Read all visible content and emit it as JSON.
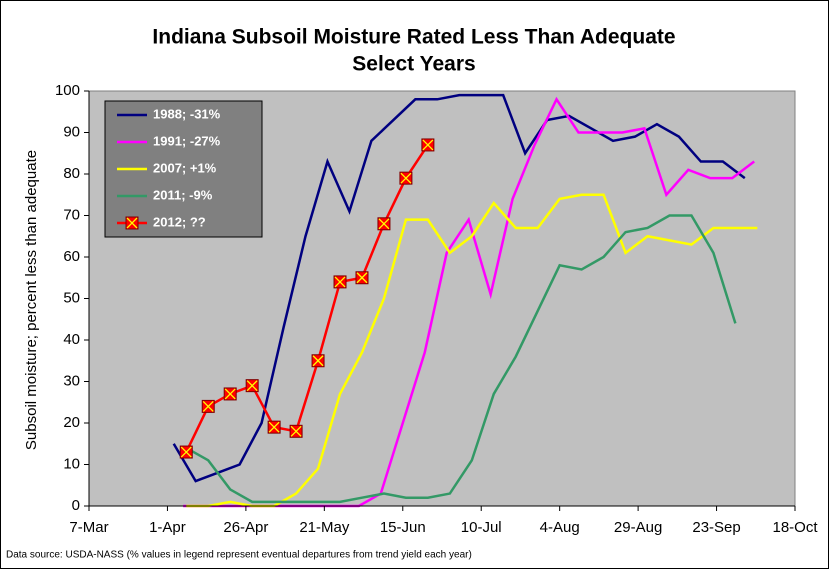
{
  "chart_data": {
    "type": "line",
    "title": "Indiana Subsoil Moisture Rated Less Than Adequate",
    "subtitle": "Select Years",
    "y_label": "Subsoil moisture; percent less than adequate",
    "note": "Data source: USDA-NASS (% values in legend represent eventual departures from trend yield each year)",
    "xlim": [
      "7-Mar",
      "18-Oct"
    ],
    "xticks": [
      "7-Mar",
      "1-Apr",
      "26-Apr",
      "21-May",
      "15-Jun",
      "10-Jul",
      "4-Aug",
      "29-Aug",
      "23-Sep",
      "18-Oct"
    ],
    "ylim": [
      0,
      100
    ],
    "yticks": [
      0,
      10,
      20,
      30,
      40,
      50,
      60,
      70,
      80,
      90,
      100
    ],
    "grid": false,
    "legend": "upper-left",
    "series": [
      {
        "name": "1988; -31%",
        "color": "#000080",
        "marker": false,
        "x": [
          "3-Apr",
          "10-Apr",
          "17-Apr",
          "24-Apr",
          "1-May",
          "8-May",
          "15-May",
          "22-May",
          "29-May",
          "5-Jun",
          "12-Jun",
          "19-Jun",
          "26-Jun",
          "3-Jul",
          "10-Jul",
          "17-Jul",
          "24-Jul",
          "31-Jul",
          "7-Aug",
          "14-Aug",
          "21-Aug",
          "28-Aug",
          "4-Sep",
          "11-Sep",
          "18-Sep",
          "25-Sep",
          "2-Oct"
        ],
        "values": [
          15,
          6,
          8,
          10,
          20,
          43,
          65,
          83,
          71,
          88,
          93,
          98,
          98,
          99,
          99,
          99,
          85,
          93,
          94,
          91,
          88,
          89,
          92,
          89,
          83,
          83,
          79
        ]
      },
      {
        "name": "1991; -27%",
        "color": "#ff00ff",
        "marker": false,
        "x": [
          "6-Apr",
          "13-Apr",
          "20-Apr",
          "27-Apr",
          "4-May",
          "11-May",
          "18-May",
          "25-May",
          "1-Jun",
          "8-Jun",
          "15-Jun",
          "22-Jun",
          "29-Jun",
          "6-Jul",
          "13-Jul",
          "20-Jul",
          "27-Jul",
          "3-Aug",
          "10-Aug",
          "17-Aug",
          "24-Aug",
          "31-Aug",
          "7-Sep",
          "14-Sep",
          "21-Sep",
          "28-Sep",
          "5-Oct"
        ],
        "values": [
          0,
          0,
          0,
          0,
          0,
          0,
          0,
          0,
          0,
          3,
          20,
          37,
          61,
          69,
          51,
          74,
          87,
          98,
          90,
          90,
          90,
          91,
          75,
          81,
          79,
          79,
          83
        ]
      },
      {
        "name": "2007; +1%",
        "color": "#ffff00",
        "marker": false,
        "x": [
          "7-Apr",
          "14-Apr",
          "21-Apr",
          "28-Apr",
          "5-May",
          "12-May",
          "19-May",
          "26-May",
          "2-Jun",
          "9-Jun",
          "16-Jun",
          "23-Jun",
          "30-Jun",
          "7-Jul",
          "14-Jul",
          "21-Jul",
          "28-Jul",
          "4-Aug",
          "11-Aug",
          "18-Aug",
          "25-Aug",
          "1-Sep",
          "8-Sep",
          "15-Sep",
          "22-Sep",
          "29-Sep",
          "6-Oct"
        ],
        "values": [
          0,
          0,
          1,
          0,
          0,
          3,
          9,
          27,
          37,
          50,
          69,
          69,
          61,
          65,
          73,
          67,
          67,
          74,
          75,
          75,
          61,
          65,
          64,
          63,
          67,
          67,
          67
        ]
      },
      {
        "name": "2011; -9%",
        "color": "#339966",
        "marker": false,
        "x": [
          "7-Apr",
          "14-Apr",
          "21-Apr",
          "28-Apr",
          "5-May",
          "12-May",
          "19-May",
          "26-May",
          "2-Jun",
          "9-Jun",
          "16-Jun",
          "23-Jun",
          "30-Jun",
          "7-Jul",
          "14-Jul",
          "21-Jul",
          "28-Jul",
          "4-Aug",
          "11-Aug",
          "18-Aug",
          "25-Aug",
          "1-Sep",
          "8-Sep",
          "15-Sep",
          "22-Sep",
          "29-Sep"
        ],
        "values": [
          14,
          11,
          4,
          1,
          1,
          1,
          1,
          1,
          2,
          3,
          2,
          2,
          3,
          11,
          27,
          36,
          47,
          58,
          57,
          60,
          66,
          67,
          70,
          70,
          61,
          44
        ]
      },
      {
        "name": "2012; ??",
        "color": "#ff0000",
        "marker": true,
        "x": [
          "7-Apr",
          "14-Apr",
          "21-Apr",
          "28-Apr",
          "5-May",
          "12-May",
          "19-May",
          "26-May",
          "2-Jun",
          "9-Jun",
          "16-Jun",
          "23-Jun"
        ],
        "values": [
          13,
          24,
          27,
          29,
          19,
          18,
          35,
          54,
          55,
          68,
          79,
          87
        ]
      }
    ]
  }
}
